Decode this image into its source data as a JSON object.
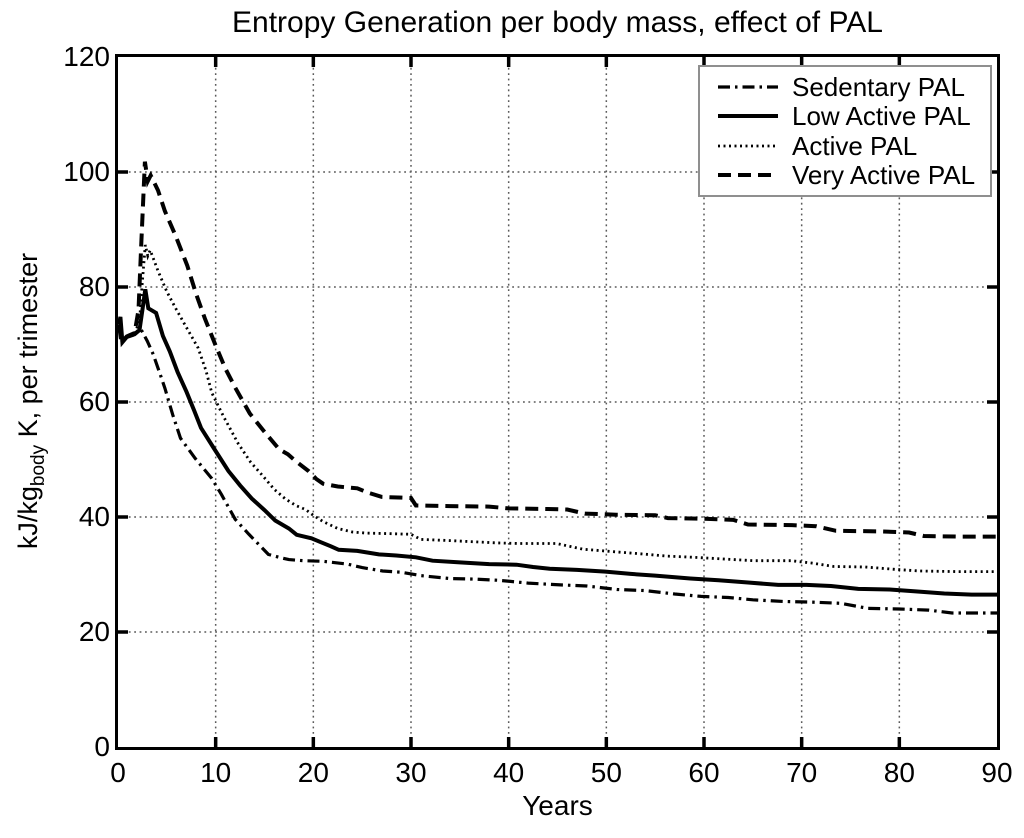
{
  "chart_data": {
    "type": "line",
    "title": "Entropy Generation per body mass, effect of PAL",
    "xlabel": "Years",
    "ylabel": {
      "pre": "kJ/kg",
      "sub": "body",
      "post": " K, per trimester"
    },
    "xlim": [
      0,
      90
    ],
    "ylim": [
      0,
      120
    ],
    "xticks": [
      0,
      10,
      20,
      30,
      40,
      50,
      60,
      70,
      80,
      90
    ],
    "yticks": [
      0,
      20,
      40,
      60,
      80,
      100,
      120
    ],
    "grid": "dotted",
    "grid_color": "#5a5a5a",
    "line_color": "#000000",
    "legend_position": "top-right",
    "legend_border_color": "#8f8f8f",
    "series": [
      {
        "name": "Sedentary PAL",
        "linestyle": "dashdot",
        "points": [
          [
            0.1,
            73
          ],
          [
            0.3,
            70.4
          ],
          [
            0.7,
            71.2
          ],
          [
            1.5,
            71.6
          ],
          [
            2.3,
            72.8
          ],
          [
            3,
            70.6
          ],
          [
            3.6,
            68.3
          ],
          [
            4.3,
            64.9
          ],
          [
            4.8,
            62.4
          ],
          [
            5.6,
            57.8
          ],
          [
            6.4,
            53.7
          ],
          [
            7.9,
            50.2
          ],
          [
            9.6,
            46.7
          ],
          [
            10.6,
            43.9
          ],
          [
            12,
            39.6
          ],
          [
            13.4,
            37
          ],
          [
            15.4,
            33.5
          ],
          [
            16.5,
            33
          ],
          [
            17.5,
            32.6
          ],
          [
            19,
            32.4
          ],
          [
            21,
            32.3
          ],
          [
            23.5,
            31.8
          ],
          [
            25,
            31.2
          ],
          [
            27.1,
            30.6
          ],
          [
            29,
            30.4
          ],
          [
            31,
            29.8
          ],
          [
            33.9,
            29.3
          ],
          [
            36.5,
            29.2
          ],
          [
            39,
            29
          ],
          [
            42,
            28.5
          ],
          [
            45.3,
            28.2
          ],
          [
            48,
            28
          ],
          [
            51.1,
            27.4
          ],
          [
            54,
            27.2
          ],
          [
            57,
            26.6
          ],
          [
            59.7,
            26.2
          ],
          [
            62.5,
            26
          ],
          [
            65,
            25.6
          ],
          [
            68.2,
            25.3
          ],
          [
            71,
            25.2
          ],
          [
            74,
            25
          ],
          [
            76.8,
            24.1
          ],
          [
            80,
            24
          ],
          [
            83,
            23.8
          ],
          [
            85.4,
            23.3
          ],
          [
            90,
            23.3
          ]
        ]
      },
      {
        "name": "Low Active PAL",
        "linestyle": "solid",
        "points": [
          [
            0.1,
            73.5
          ],
          [
            0.25,
            74.8
          ],
          [
            0.45,
            70.4
          ],
          [
            0.9,
            71.3
          ],
          [
            1.7,
            71.8
          ],
          [
            2.2,
            72.5
          ],
          [
            2.5,
            76
          ],
          [
            2.8,
            79.6
          ],
          [
            3.1,
            76.3
          ],
          [
            3.9,
            75.5
          ],
          [
            4.6,
            71.5
          ],
          [
            5.3,
            68.8
          ],
          [
            6.1,
            65.2
          ],
          [
            7,
            61.8
          ],
          [
            7.8,
            58.5
          ],
          [
            8.5,
            55.5
          ],
          [
            9.8,
            52
          ],
          [
            11.3,
            48
          ],
          [
            12.5,
            45.5
          ],
          [
            13.7,
            43.2
          ],
          [
            15,
            41.2
          ],
          [
            16.1,
            39.4
          ],
          [
            17.5,
            38
          ],
          [
            18.3,
            36.9
          ],
          [
            19.8,
            36.3
          ],
          [
            20.8,
            35.6
          ],
          [
            21.8,
            34.9
          ],
          [
            22.6,
            34.3
          ],
          [
            24.5,
            34.1
          ],
          [
            26.7,
            33.5
          ],
          [
            28.5,
            33.3
          ],
          [
            30.5,
            33
          ],
          [
            32.2,
            32.4
          ],
          [
            35,
            32.1
          ],
          [
            38,
            31.8
          ],
          [
            40.8,
            31.7
          ],
          [
            42.5,
            31.3
          ],
          [
            44.2,
            31
          ],
          [
            47,
            30.8
          ],
          [
            49.9,
            30.5
          ],
          [
            52.5,
            30.1
          ],
          [
            55,
            29.8
          ],
          [
            58.6,
            29.3
          ],
          [
            61.5,
            29
          ],
          [
            64.5,
            28.6
          ],
          [
            67.6,
            28.2
          ],
          [
            70.5,
            28.2
          ],
          [
            73,
            28
          ],
          [
            75.8,
            27.5
          ],
          [
            79,
            27.4
          ],
          [
            81.5,
            27.1
          ],
          [
            84.6,
            26.7
          ],
          [
            87.4,
            26.5
          ],
          [
            90,
            26.5
          ]
        ]
      },
      {
        "name": "Active PAL",
        "linestyle": "dotted",
        "points": [
          [
            0.1,
            73.5
          ],
          [
            0.4,
            70.5
          ],
          [
            0.9,
            71.4
          ],
          [
            1.7,
            71.9
          ],
          [
            2.2,
            74
          ],
          [
            2.5,
            81
          ],
          [
            2.8,
            87.3
          ],
          [
            3.05,
            85.4
          ],
          [
            3.3,
            86.4
          ],
          [
            4.1,
            82.8
          ],
          [
            5,
            79.2
          ],
          [
            6,
            76
          ],
          [
            7.2,
            72.4
          ],
          [
            8.2,
            69.4
          ],
          [
            9,
            65.5
          ],
          [
            9.6,
            61.6
          ],
          [
            10.8,
            57.5
          ],
          [
            12.3,
            52.8
          ],
          [
            13.6,
            49.5
          ],
          [
            14.7,
            47.4
          ],
          [
            16,
            44.8
          ],
          [
            17.1,
            43.2
          ],
          [
            18.2,
            42
          ],
          [
            19.2,
            41.3
          ],
          [
            20,
            40.3
          ],
          [
            21,
            39.2
          ],
          [
            22.5,
            38
          ],
          [
            24,
            37.4
          ],
          [
            25.4,
            37.2
          ],
          [
            28,
            37.1
          ],
          [
            30,
            37
          ],
          [
            31,
            36.1
          ],
          [
            34,
            35.9
          ],
          [
            38.8,
            35.5
          ],
          [
            41,
            35.4
          ],
          [
            44.9,
            35.4
          ],
          [
            47.6,
            34.4
          ],
          [
            50.5,
            34
          ],
          [
            53.5,
            33.6
          ],
          [
            56.2,
            33.2
          ],
          [
            59,
            33
          ],
          [
            62,
            32.7
          ],
          [
            65.1,
            32.4
          ],
          [
            68.9,
            32.4
          ],
          [
            71,
            32
          ],
          [
            73.3,
            31.4
          ],
          [
            76.5,
            31.3
          ],
          [
            79.5,
            30.9
          ],
          [
            82.1,
            30.6
          ],
          [
            86,
            30.5
          ],
          [
            90,
            30.5
          ]
        ]
      },
      {
        "name": "Very Active PAL",
        "linestyle": "dashed",
        "points": [
          [
            0.1,
            73.5
          ],
          [
            0.4,
            70.5
          ],
          [
            0.9,
            71.4
          ],
          [
            1.7,
            72
          ],
          [
            2.1,
            76
          ],
          [
            2.4,
            88
          ],
          [
            2.75,
            101.8
          ],
          [
            3.05,
            98.4
          ],
          [
            3.35,
            99.4
          ],
          [
            4.1,
            96.8
          ],
          [
            4.8,
            93.2
          ],
          [
            5.9,
            88.9
          ],
          [
            7.1,
            83.7
          ],
          [
            8,
            78.8
          ],
          [
            8.9,
            74.5
          ],
          [
            10,
            69.8
          ],
          [
            11,
            65.8
          ],
          [
            12,
            62.5
          ],
          [
            13.5,
            58
          ],
          [
            15.1,
            54.6
          ],
          [
            16.5,
            51.8
          ],
          [
            17.4,
            50.9
          ],
          [
            18.2,
            49.7
          ],
          [
            19.5,
            48
          ],
          [
            20.3,
            46.6
          ],
          [
            21,
            45.8
          ],
          [
            22.5,
            45.3
          ],
          [
            24.5,
            45
          ],
          [
            25.5,
            44.3
          ],
          [
            27,
            43.5
          ],
          [
            30,
            43.3
          ],
          [
            30.5,
            42
          ],
          [
            34,
            41.9
          ],
          [
            38,
            41.8
          ],
          [
            40,
            41.5
          ],
          [
            44,
            41.4
          ],
          [
            46,
            41.3
          ],
          [
            47.8,
            40.6
          ],
          [
            51,
            40.4
          ],
          [
            55,
            40.3
          ],
          [
            56.3,
            39.8
          ],
          [
            60,
            39.7
          ],
          [
            63,
            39.5
          ],
          [
            64.5,
            38.7
          ],
          [
            69,
            38.6
          ],
          [
            71.5,
            38.4
          ],
          [
            73.5,
            37.6
          ],
          [
            78,
            37.5
          ],
          [
            81,
            37.3
          ],
          [
            82.5,
            36.7
          ],
          [
            86,
            36.6
          ],
          [
            90,
            36.6
          ]
        ]
      }
    ]
  }
}
